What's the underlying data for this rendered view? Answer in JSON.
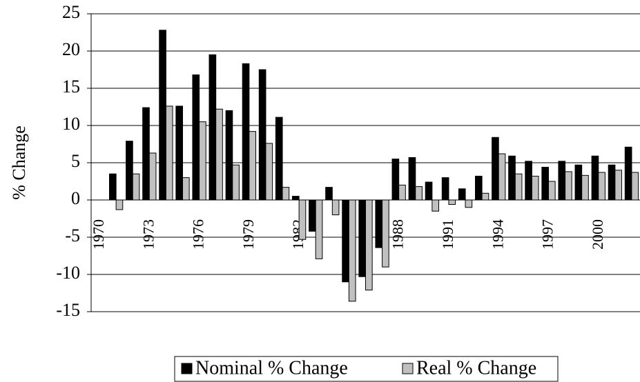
{
  "chart_data": {
    "type": "bar",
    "y_label": "% Change",
    "categories": [
      "1970",
      null,
      null,
      "1973",
      null,
      null,
      "1976",
      null,
      null,
      "1979",
      null,
      null,
      "1982",
      null,
      null,
      "1985",
      null,
      null,
      "1988",
      null,
      null,
      "1991",
      null,
      null,
      "1994",
      null,
      null,
      "1997",
      null,
      null,
      "2000",
      null,
      null
    ],
    "series": [
      {
        "name": "Nominal % Change",
        "color": "#000000",
        "values": [
          null,
          3.5,
          7.9,
          12.4,
          22.8,
          12.6,
          16.8,
          19.5,
          12.0,
          18.3,
          17.5,
          11.1,
          0.5,
          -4.2,
          1.7,
          -11.0,
          -10.3,
          -6.4,
          5.5,
          5.7,
          2.4,
          3.0,
          1.5,
          3.2,
          8.4,
          5.9,
          5.2,
          4.4,
          5.2,
          4.7,
          5.9,
          4.7,
          7.1
        ]
      },
      {
        "name": "Real % Change",
        "color": "#c0c0c0",
        "values": [
          null,
          -1.3,
          3.5,
          6.3,
          12.6,
          3.0,
          10.5,
          12.2,
          4.7,
          9.2,
          7.6,
          1.7,
          -5.3,
          -7.9,
          -2.0,
          -13.6,
          -12.1,
          -9.0,
          2.0,
          1.8,
          -1.5,
          -0.6,
          -1.0,
          0.9,
          6.2,
          3.5,
          3.2,
          2.5,
          3.8,
          3.3,
          3.7,
          4.0,
          3.7
        ]
      }
    ],
    "ylim": [
      -15,
      25
    ],
    "yticks": [
      -15,
      -10,
      -5,
      0,
      5,
      10,
      15,
      20,
      25
    ],
    "grid": true,
    "legend": "bottom"
  }
}
